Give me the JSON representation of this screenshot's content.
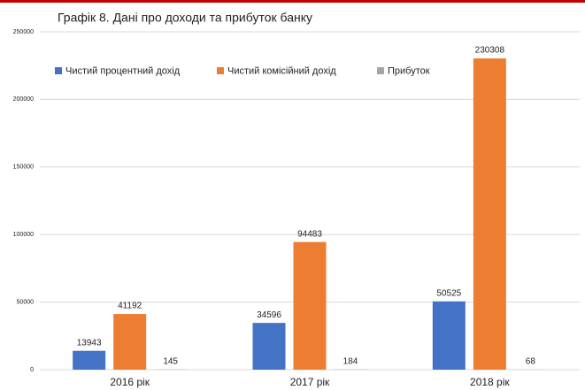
{
  "chart_data": {
    "type": "bar",
    "title": "Графік 8. Дані про доходи та прибуток банку",
    "categories": [
      "2016 рік",
      "2017 рік",
      "2018 рік"
    ],
    "series": [
      {
        "name": "Чистий процентний дохід",
        "color": "#4472c4",
        "values": [
          13943,
          34596,
          50525
        ]
      },
      {
        "name": "Чистий комісійний дохід",
        "color": "#ed7d31",
        "values": [
          41192,
          94483,
          230308
        ]
      },
      {
        "name": "Прибуток",
        "color": "#a5a5a5",
        "values": [
          145,
          184,
          68
        ]
      }
    ],
    "ylim": [
      0,
      250000
    ],
    "yticks": [
      0,
      50000,
      100000,
      150000,
      200000,
      250000
    ],
    "grid": true,
    "legend": "top-left"
  }
}
